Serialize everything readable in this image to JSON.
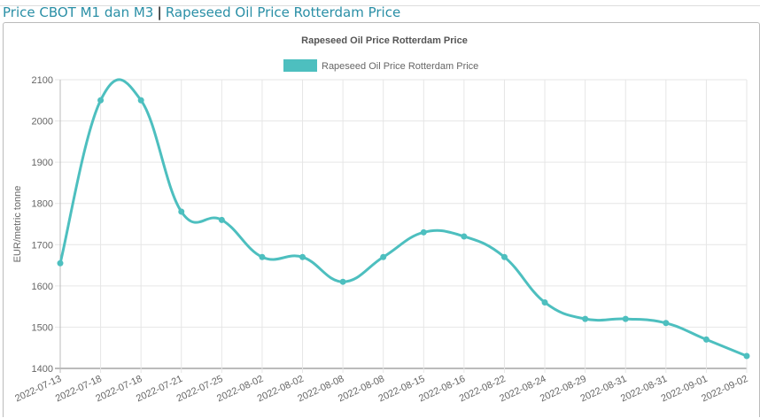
{
  "header": {
    "link1": "Price CBOT M1 dan M3",
    "separator": "|",
    "link2": "Rapeseed Oil Price Rotterdam Price"
  },
  "chart_data": {
    "type": "line",
    "title": "Rapeseed Oil Price Rotterdam Price",
    "legend": [
      "Rapeseed Oil Price Rotterdam Price"
    ],
    "legend_position": "top",
    "xlabel": "",
    "ylabel": "EUR/metric tonne",
    "ylim": [
      1400,
      2100
    ],
    "yticks": [
      1400,
      1500,
      1600,
      1700,
      1800,
      1900,
      2000,
      2100
    ],
    "grid": true,
    "color": "#4dbfbf",
    "categories": [
      "2022-07-13",
      "2022-07-18",
      "2022-07-18",
      "2022-07-21",
      "2022-07-25",
      "2022-08-02",
      "2022-08-02",
      "2022-08-08",
      "2022-08-08",
      "2022-08-15",
      "2022-08-16",
      "2022-08-22",
      "2022-08-24",
      "2022-08-29",
      "2022-08-31",
      "2022-08-31",
      "2022-09-01",
      "2022-09-02"
    ],
    "series": [
      {
        "name": "Rapeseed Oil Price Rotterdam Price",
        "values": [
          1655,
          2050,
          2050,
          1780,
          1760,
          1670,
          1670,
          1610,
          1670,
          1730,
          1720,
          1670,
          1560,
          1520,
          1520,
          1510,
          1470,
          1430
        ]
      }
    ]
  }
}
